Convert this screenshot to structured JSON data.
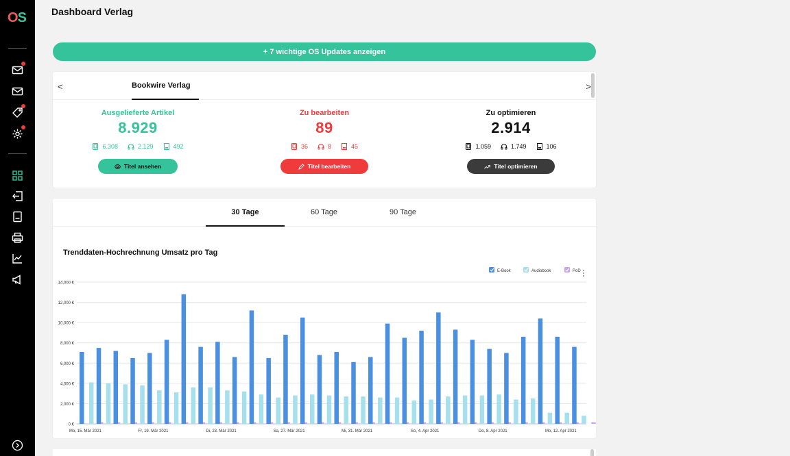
{
  "page_title": "Dashboard Verlag",
  "updates_button": "+ 7 wichtige OS Updates anzeigen",
  "logo": {
    "o": "O",
    "s": "S"
  },
  "overview": {
    "nav_prev": "<",
    "nav_next": ">",
    "publisher_tab": "Bookwire Verlag",
    "metrics": [
      {
        "label": "Ausgelieferte Artikel",
        "value": "8.929",
        "ebook": "6.308",
        "audiobook": "2.129",
        "pod": "492",
        "button": "Titel ansehen"
      },
      {
        "label": "Zu bearbeiten",
        "value": "89",
        "ebook": "36",
        "audiobook": "8",
        "pod": "45",
        "button": "Titel bearbeiten"
      },
      {
        "label": "Zu optimieren",
        "value": "2.914",
        "ebook": "1.059",
        "audiobook": "1.749",
        "pod": "106",
        "button": "Titel optimieren"
      }
    ],
    "colors": {
      "green": "#34c39a",
      "red": "#ef3b3b",
      "dark": "#3b3b3b"
    }
  },
  "range_tabs": [
    "30 Tage",
    "60 Tage",
    "90 Tage"
  ],
  "chart_title": "Trenddaten-Hochrechnung Umsatz pro Tag",
  "chart_data": {
    "type": "bar",
    "title": "Trenddaten-Hochrechnung Umsatz pro Tag",
    "ylim": [
      0,
      14000
    ],
    "yticks": [
      "0 €",
      "2,000 €",
      "4,000 €",
      "6,000 €",
      "8,000 €",
      "10,000 €",
      "12,000 €",
      "14,000 €"
    ],
    "xtick_labels": [
      {
        "index": 0,
        "label": "Mo, 15. Mär 2021"
      },
      {
        "index": 4,
        "label": "Fr, 19. Mär 2021"
      },
      {
        "index": 8,
        "label": "Di, 23. Mär 2021"
      },
      {
        "index": 12,
        "label": "Sa, 27. Mär 2021"
      },
      {
        "index": 16,
        "label": "Mi, 31. Mär 2021"
      },
      {
        "index": 20,
        "label": "So, 4. Apr 2021"
      },
      {
        "index": 24,
        "label": "Do, 8. Apr 2021"
      },
      {
        "index": 28,
        "label": "Mo, 12. Apr 2021"
      }
    ],
    "legend_position": "top-right",
    "grid": true,
    "series": [
      {
        "name": "E-Book",
        "color": "#4a8fe0",
        "values": [
          7100,
          7500,
          7200,
          6500,
          7000,
          8300,
          12800,
          7600,
          8100,
          6600,
          11200,
          6500,
          8800,
          10500,
          6800,
          7100,
          6100,
          6600,
          9900,
          8500,
          9200,
          11000,
          9300,
          8300,
          7400,
          7000,
          8600,
          10400,
          8600,
          7600
        ]
      },
      {
        "name": "Audiobook",
        "color": "#a6e0ec",
        "values": [
          4100,
          4000,
          3900,
          3800,
          3300,
          3100,
          3600,
          3600,
          3300,
          3200,
          2900,
          2600,
          2800,
          2900,
          2800,
          2700,
          2700,
          2600,
          2600,
          2300,
          2400,
          2700,
          2800,
          2800,
          2900,
          2400,
          2500,
          1100,
          1100,
          800
        ]
      },
      {
        "name": "PoD",
        "color": "#c9a4ef",
        "values": [
          150,
          150,
          150,
          150,
          150,
          150,
          150,
          150,
          150,
          150,
          150,
          150,
          150,
          150,
          150,
          150,
          150,
          150,
          150,
          150,
          150,
          150,
          150,
          150,
          150,
          150,
          150,
          150,
          150,
          150
        ]
      }
    ]
  }
}
